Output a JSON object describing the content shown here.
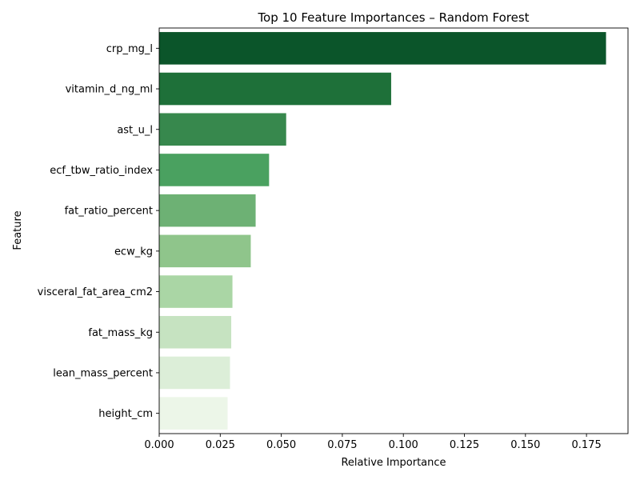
{
  "chart_data": {
    "type": "bar",
    "orientation": "horizontal",
    "title": "Top 10 Feature Importances – Random Forest",
    "xlabel": "Relative Importance",
    "ylabel": "Feature",
    "xlim": [
      0,
      0.192
    ],
    "xticks": [
      "0.000",
      "0.025",
      "0.050",
      "0.075",
      "0.100",
      "0.125",
      "0.150",
      "0.175"
    ],
    "grid": false,
    "categories": [
      "crp_mg_l",
      "vitamin_d_ng_ml",
      "ast_u_l",
      "ecf_tbw_ratio_index",
      "fat_ratio_percent",
      "ecw_kg",
      "visceral_fat_area_cm2",
      "fat_mass_kg",
      "lean_mass_percent",
      "height_cm"
    ],
    "values": [
      0.183,
      0.095,
      0.052,
      0.045,
      0.0395,
      0.0375,
      0.03,
      0.0295,
      0.029,
      0.028
    ],
    "colors": [
      "#0b552a",
      "#1e7039",
      "#37884d",
      "#4aa160",
      "#6db174",
      "#8fc58b",
      "#aad6a5",
      "#c6e3c1",
      "#dceed8",
      "#ecf6e8"
    ]
  }
}
